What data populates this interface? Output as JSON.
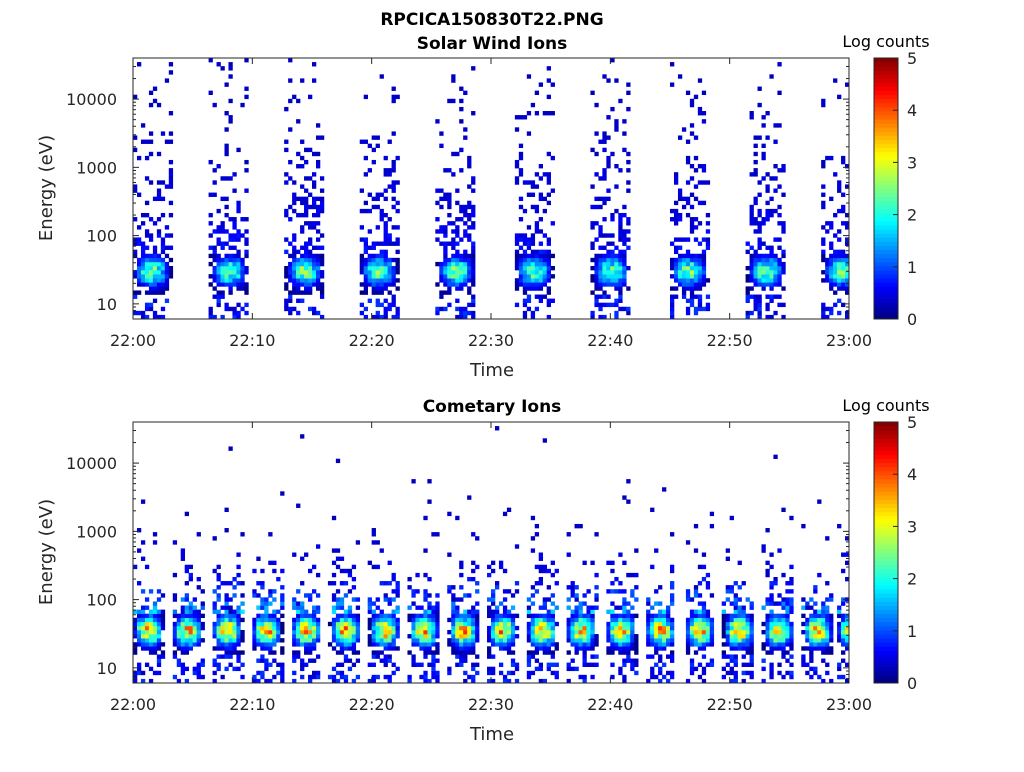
{
  "figure_title": "RPCICA150830T22.PNG",
  "chart_data": [
    {
      "type": "heatmap",
      "title": "Solar Wind Ions",
      "xlabel": "Time",
      "ylabel": "Energy (eV)",
      "yscale": "log",
      "ylim": [
        6,
        40000
      ],
      "x_ticks": [
        "22:00",
        "22:10",
        "22:20",
        "22:30",
        "22:40",
        "22:50",
        "23:00"
      ],
      "x_range": [
        "22:00",
        "23:00"
      ],
      "y_ticks": [
        {
          "value": 10,
          "label": "10"
        },
        {
          "value": 100,
          "label": "100"
        },
        {
          "value": 1000,
          "label": "1000"
        },
        {
          "value": 10000,
          "label": "10000"
        }
      ],
      "colorbar": {
        "label": "Log counts",
        "range": [
          0,
          5
        ],
        "ticks": [
          "0",
          "1",
          "2",
          "3",
          "4",
          "5"
        ],
        "colormap": "jet"
      },
      "sweep_start_minutes": [
        0,
        6.5,
        12.8,
        19.0,
        25.5,
        32.0,
        38.5,
        45.0,
        51.5,
        57.8
      ],
      "sweep_duration_minutes": 3.2,
      "peak_energy_eV": 30,
      "peak_log_counts": 2.8,
      "background_log_counts": 0.3
    },
    {
      "type": "heatmap",
      "title": "Cometary Ions",
      "xlabel": "Time",
      "ylabel": "Energy (eV)",
      "yscale": "log",
      "ylim": [
        6,
        40000
      ],
      "x_ticks": [
        "22:00",
        "22:10",
        "22:20",
        "22:30",
        "22:40",
        "22:50",
        "23:00"
      ],
      "x_range": [
        "22:00",
        "23:00"
      ],
      "y_ticks": [
        {
          "value": 10,
          "label": "10"
        },
        {
          "value": 100,
          "label": "100"
        },
        {
          "value": 1000,
          "label": "1000"
        },
        {
          "value": 10000,
          "label": "10000"
        }
      ],
      "colorbar": {
        "label": "Log counts",
        "range": [
          0,
          5
        ],
        "ticks": [
          "0",
          "1",
          "2",
          "3",
          "4",
          "5"
        ],
        "colormap": "jet"
      },
      "sweep_start_minutes": [
        0,
        3.3,
        6.6,
        9.9,
        13.2,
        16.5,
        19.8,
        23.1,
        26.4,
        29.7,
        33.0,
        36.3,
        39.6,
        42.9,
        46.2,
        49.5,
        52.8,
        56.1,
        59.0
      ],
      "sweep_duration_minutes": 2.6,
      "peak_energy_eV": 35,
      "peak_log_counts": 4.0,
      "background_log_counts": 0.3
    }
  ]
}
